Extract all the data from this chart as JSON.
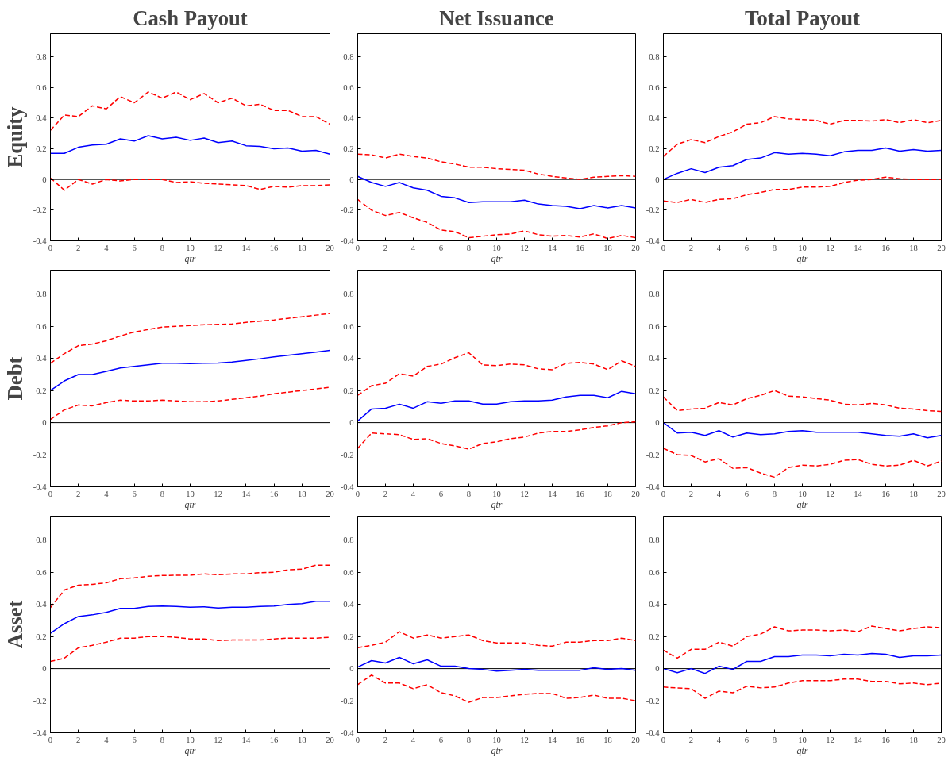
{
  "chart_data": [
    {
      "type": "line",
      "title": "Cash Payout",
      "ylabel": "Equity",
      "xlabel": "qtr",
      "x": [
        0,
        1,
        2,
        3,
        4,
        5,
        6,
        7,
        8,
        9,
        10,
        11,
        12,
        13,
        14,
        15,
        16,
        17,
        18,
        19,
        20
      ],
      "xlim": [
        0,
        20
      ],
      "xticks": [
        0,
        2,
        4,
        6,
        8,
        10,
        12,
        14,
        16,
        18,
        20
      ],
      "ylim": [
        -0.4,
        0.95
      ],
      "yticks": [
        -0.4,
        -0.2,
        0,
        0.2,
        0.4,
        0.6,
        0.8
      ],
      "ref_lines": [
        {
          "axis": "y",
          "value": 0,
          "color": "#000000"
        }
      ],
      "series": [
        {
          "color": "#0000ff",
          "line_style": "solid",
          "values": [
            0.17,
            0.17,
            0.21,
            0.225,
            0.23,
            0.265,
            0.25,
            0.285,
            0.265,
            0.275,
            0.255,
            0.27,
            0.24,
            0.25,
            0.22,
            0.215,
            0.2,
            0.205,
            0.185,
            0.19,
            0.165
          ]
        },
        {
          "color": "#ff0000",
          "line_style": "dashed",
          "values": [
            0.32,
            0.42,
            0.41,
            0.48,
            0.46,
            0.54,
            0.5,
            0.57,
            0.53,
            0.57,
            0.52,
            0.56,
            0.5,
            0.53,
            0.48,
            0.49,
            0.45,
            0.45,
            0.41,
            0.41,
            0.36
          ]
        },
        {
          "color": "#ff0000",
          "line_style": "dashed",
          "values": [
            0.01,
            -0.07,
            0.0,
            -0.03,
            0.0,
            -0.01,
            0.0,
            0.0,
            0.0,
            -0.02,
            -0.015,
            -0.025,
            -0.03,
            -0.035,
            -0.04,
            -0.065,
            -0.045,
            -0.05,
            -0.04,
            -0.04,
            -0.035
          ]
        }
      ]
    },
    {
      "type": "line",
      "title": "Net Issuance",
      "xlabel": "qtr",
      "x": [
        0,
        1,
        2,
        3,
        4,
        5,
        6,
        7,
        8,
        9,
        10,
        11,
        12,
        13,
        14,
        15,
        16,
        17,
        18,
        19,
        20
      ],
      "xlim": [
        0,
        20
      ],
      "xticks": [
        0,
        2,
        4,
        6,
        8,
        10,
        12,
        14,
        16,
        18,
        20
      ],
      "ylim": [
        -0.4,
        0.95
      ],
      "yticks": [
        -0.4,
        -0.2,
        0,
        0.2,
        0.4,
        0.6,
        0.8
      ],
      "ref_lines": [
        {
          "axis": "y",
          "value": 0,
          "color": "#000000"
        }
      ],
      "series": [
        {
          "color": "#0000ff",
          "line_style": "solid",
          "values": [
            0.02,
            -0.02,
            -0.045,
            -0.02,
            -0.055,
            -0.07,
            -0.11,
            -0.12,
            -0.15,
            -0.145,
            -0.145,
            -0.145,
            -0.135,
            -0.16,
            -0.17,
            -0.175,
            -0.19,
            -0.17,
            -0.185,
            -0.17,
            -0.185
          ]
        },
        {
          "color": "#ff0000",
          "line_style": "dashed",
          "values": [
            0.165,
            0.16,
            0.14,
            0.165,
            0.15,
            0.14,
            0.115,
            0.1,
            0.08,
            0.08,
            0.07,
            0.065,
            0.06,
            0.035,
            0.02,
            0.01,
            0.0,
            0.015,
            0.02,
            0.025,
            0.02
          ]
        },
        {
          "color": "#ff0000",
          "line_style": "dashed",
          "values": [
            -0.13,
            -0.2,
            -0.235,
            -0.215,
            -0.25,
            -0.28,
            -0.33,
            -0.34,
            -0.38,
            -0.37,
            -0.36,
            -0.355,
            -0.335,
            -0.36,
            -0.37,
            -0.365,
            -0.375,
            -0.355,
            -0.385,
            -0.365,
            -0.38
          ]
        }
      ]
    },
    {
      "type": "line",
      "title": "Total Payout",
      "xlabel": "qtr",
      "x": [
        0,
        1,
        2,
        3,
        4,
        5,
        6,
        7,
        8,
        9,
        10,
        11,
        12,
        13,
        14,
        15,
        16,
        17,
        18,
        19,
        20
      ],
      "xlim": [
        0,
        20
      ],
      "xticks": [
        0,
        2,
        4,
        6,
        8,
        10,
        12,
        14,
        16,
        18,
        20
      ],
      "ylim": [
        -0.4,
        0.95
      ],
      "yticks": [
        -0.4,
        -0.2,
        0,
        0.2,
        0.4,
        0.6,
        0.8
      ],
      "ref_lines": [
        {
          "axis": "y",
          "value": 0,
          "color": "#000000"
        }
      ],
      "series": [
        {
          "color": "#0000ff",
          "line_style": "solid",
          "values": [
            0.0,
            0.04,
            0.07,
            0.045,
            0.08,
            0.09,
            0.13,
            0.14,
            0.175,
            0.165,
            0.17,
            0.165,
            0.155,
            0.18,
            0.19,
            0.19,
            0.205,
            0.185,
            0.195,
            0.185,
            0.19
          ]
        },
        {
          "color": "#ff0000",
          "line_style": "dashed",
          "values": [
            0.15,
            0.23,
            0.26,
            0.24,
            0.28,
            0.31,
            0.36,
            0.37,
            0.41,
            0.395,
            0.39,
            0.385,
            0.36,
            0.385,
            0.385,
            0.38,
            0.39,
            0.37,
            0.39,
            0.37,
            0.385
          ]
        },
        {
          "color": "#ff0000",
          "line_style": "dashed",
          "values": [
            -0.14,
            -0.15,
            -0.13,
            -0.15,
            -0.13,
            -0.125,
            -0.1,
            -0.085,
            -0.065,
            -0.065,
            -0.05,
            -0.05,
            -0.045,
            -0.02,
            -0.005,
            0.0,
            0.015,
            0.005,
            0.0,
            0.0,
            0.0
          ]
        }
      ]
    },
    {
      "type": "line",
      "ylabel": "Debt",
      "xlabel": "qtr",
      "x": [
        0,
        1,
        2,
        3,
        4,
        5,
        6,
        7,
        8,
        9,
        10,
        11,
        12,
        13,
        14,
        15,
        16,
        17,
        18,
        19,
        20
      ],
      "xlim": [
        0,
        20
      ],
      "xticks": [
        0,
        2,
        4,
        6,
        8,
        10,
        12,
        14,
        16,
        18,
        20
      ],
      "ylim": [
        -0.4,
        0.95
      ],
      "yticks": [
        -0.4,
        -0.2,
        0,
        0.2,
        0.4,
        0.6,
        0.8
      ],
      "ref_lines": [
        {
          "axis": "y",
          "value": 0,
          "color": "#000000"
        }
      ],
      "series": [
        {
          "color": "#0000ff",
          "line_style": "solid",
          "values": [
            0.2,
            0.26,
            0.3,
            0.3,
            0.32,
            0.34,
            0.35,
            0.36,
            0.37,
            0.37,
            0.368,
            0.37,
            0.372,
            0.378,
            0.388,
            0.398,
            0.41,
            0.42,
            0.43,
            0.44,
            0.45
          ]
        },
        {
          "color": "#ff0000",
          "line_style": "dashed",
          "values": [
            0.37,
            0.43,
            0.48,
            0.49,
            0.51,
            0.54,
            0.565,
            0.58,
            0.595,
            0.6,
            0.605,
            0.61,
            0.612,
            0.615,
            0.625,
            0.632,
            0.64,
            0.65,
            0.66,
            0.67,
            0.68
          ]
        },
        {
          "color": "#ff0000",
          "line_style": "dashed",
          "values": [
            0.02,
            0.08,
            0.11,
            0.105,
            0.125,
            0.14,
            0.135,
            0.135,
            0.14,
            0.135,
            0.13,
            0.13,
            0.135,
            0.145,
            0.155,
            0.165,
            0.18,
            0.19,
            0.2,
            0.21,
            0.22
          ]
        }
      ]
    },
    {
      "type": "line",
      "xlabel": "qtr",
      "x": [
        0,
        1,
        2,
        3,
        4,
        5,
        6,
        7,
        8,
        9,
        10,
        11,
        12,
        13,
        14,
        15,
        16,
        17,
        18,
        19,
        20
      ],
      "xlim": [
        0,
        20
      ],
      "xticks": [
        0,
        2,
        4,
        6,
        8,
        10,
        12,
        14,
        16,
        18,
        20
      ],
      "ylim": [
        -0.4,
        0.95
      ],
      "yticks": [
        -0.4,
        -0.2,
        0,
        0.2,
        0.4,
        0.6,
        0.8
      ],
      "ref_lines": [
        {
          "axis": "y",
          "value": 0,
          "color": "#000000"
        }
      ],
      "series": [
        {
          "color": "#0000ff",
          "line_style": "solid",
          "values": [
            0.01,
            0.085,
            0.09,
            0.115,
            0.09,
            0.13,
            0.12,
            0.135,
            0.135,
            0.115,
            0.115,
            0.13,
            0.135,
            0.135,
            0.14,
            0.16,
            0.17,
            0.17,
            0.155,
            0.195,
            0.18
          ]
        },
        {
          "color": "#ff0000",
          "line_style": "dashed",
          "values": [
            0.17,
            0.23,
            0.245,
            0.305,
            0.29,
            0.35,
            0.365,
            0.405,
            0.435,
            0.36,
            0.355,
            0.365,
            0.36,
            0.335,
            0.33,
            0.37,
            0.375,
            0.365,
            0.33,
            0.385,
            0.35
          ]
        },
        {
          "color": "#ff0000",
          "line_style": "dashed",
          "values": [
            -0.16,
            -0.065,
            -0.07,
            -0.075,
            -0.105,
            -0.1,
            -0.13,
            -0.145,
            -0.165,
            -0.13,
            -0.12,
            -0.1,
            -0.09,
            -0.065,
            -0.055,
            -0.055,
            -0.045,
            -0.03,
            -0.02,
            0.0,
            0.005
          ]
        }
      ]
    },
    {
      "type": "line",
      "xlabel": "qtr",
      "x": [
        0,
        1,
        2,
        3,
        4,
        5,
        6,
        7,
        8,
        9,
        10,
        11,
        12,
        13,
        14,
        15,
        16,
        17,
        18,
        19,
        20
      ],
      "xlim": [
        0,
        20
      ],
      "xticks": [
        0,
        2,
        4,
        6,
        8,
        10,
        12,
        14,
        16,
        18,
        20
      ],
      "ylim": [
        -0.4,
        0.95
      ],
      "yticks": [
        -0.4,
        -0.2,
        0,
        0.2,
        0.4,
        0.6,
        0.8
      ],
      "ref_lines": [
        {
          "axis": "y",
          "value": 0,
          "color": "#000000"
        }
      ],
      "series": [
        {
          "color": "#0000ff",
          "line_style": "solid",
          "values": [
            0.0,
            -0.065,
            -0.06,
            -0.08,
            -0.05,
            -0.09,
            -0.065,
            -0.075,
            -0.07,
            -0.055,
            -0.05,
            -0.06,
            -0.06,
            -0.06,
            -0.06,
            -0.07,
            -0.08,
            -0.085,
            -0.07,
            -0.095,
            -0.08
          ]
        },
        {
          "color": "#ff0000",
          "line_style": "dashed",
          "values": [
            0.16,
            0.075,
            0.085,
            0.09,
            0.125,
            0.11,
            0.15,
            0.17,
            0.2,
            0.165,
            0.16,
            0.15,
            0.14,
            0.115,
            0.11,
            0.12,
            0.11,
            0.09,
            0.085,
            0.075,
            0.07
          ]
        },
        {
          "color": "#ff0000",
          "line_style": "dashed",
          "values": [
            -0.16,
            -0.2,
            -0.205,
            -0.245,
            -0.225,
            -0.285,
            -0.28,
            -0.315,
            -0.34,
            -0.28,
            -0.265,
            -0.27,
            -0.26,
            -0.235,
            -0.23,
            -0.26,
            -0.27,
            -0.265,
            -0.235,
            -0.27,
            -0.24
          ]
        }
      ]
    },
    {
      "type": "line",
      "ylabel": "Asset",
      "xlabel": "qtr",
      "x": [
        0,
        1,
        2,
        3,
        4,
        5,
        6,
        7,
        8,
        9,
        10,
        11,
        12,
        13,
        14,
        15,
        16,
        17,
        18,
        19,
        20
      ],
      "xlim": [
        0,
        20
      ],
      "xticks": [
        0,
        2,
        4,
        6,
        8,
        10,
        12,
        14,
        16,
        18,
        20
      ],
      "ylim": [
        -0.4,
        0.95
      ],
      "yticks": [
        -0.4,
        -0.2,
        0,
        0.2,
        0.4,
        0.6,
        0.8
      ],
      "ref_lines": [
        {
          "axis": "y",
          "value": 0,
          "color": "#000000"
        }
      ],
      "series": [
        {
          "color": "#0000ff",
          "line_style": "solid",
          "values": [
            0.22,
            0.28,
            0.325,
            0.335,
            0.35,
            0.375,
            0.375,
            0.387,
            0.39,
            0.388,
            0.382,
            0.385,
            0.378,
            0.383,
            0.383,
            0.387,
            0.39,
            0.4,
            0.405,
            0.42,
            0.42
          ]
        },
        {
          "color": "#ff0000",
          "line_style": "dashed",
          "values": [
            0.38,
            0.49,
            0.52,
            0.525,
            0.535,
            0.56,
            0.565,
            0.575,
            0.58,
            0.582,
            0.582,
            0.59,
            0.585,
            0.59,
            0.59,
            0.598,
            0.6,
            0.615,
            0.62,
            0.645,
            0.645
          ]
        },
        {
          "color": "#ff0000",
          "line_style": "dashed",
          "values": [
            0.045,
            0.065,
            0.13,
            0.145,
            0.165,
            0.19,
            0.19,
            0.2,
            0.2,
            0.195,
            0.185,
            0.185,
            0.175,
            0.178,
            0.178,
            0.178,
            0.185,
            0.19,
            0.19,
            0.19,
            0.195
          ]
        }
      ]
    },
    {
      "type": "line",
      "xlabel": "qtr",
      "x": [
        0,
        1,
        2,
        3,
        4,
        5,
        6,
        7,
        8,
        9,
        10,
        11,
        12,
        13,
        14,
        15,
        16,
        17,
        18,
        19,
        20
      ],
      "xlim": [
        0,
        20
      ],
      "xticks": [
        0,
        2,
        4,
        6,
        8,
        10,
        12,
        14,
        16,
        18,
        20
      ],
      "ylim": [
        -0.4,
        0.95
      ],
      "yticks": [
        -0.4,
        -0.2,
        0,
        0.2,
        0.4,
        0.6,
        0.8
      ],
      "ref_lines": [
        {
          "axis": "y",
          "value": 0,
          "color": "#000000"
        }
      ],
      "series": [
        {
          "color": "#0000ff",
          "line_style": "solid",
          "values": [
            0.01,
            0.05,
            0.035,
            0.07,
            0.03,
            0.055,
            0.015,
            0.015,
            0.0,
            -0.005,
            -0.015,
            -0.01,
            -0.005,
            -0.01,
            -0.01,
            -0.01,
            -0.01,
            0.005,
            -0.005,
            0.0,
            -0.01
          ]
        },
        {
          "color": "#ff0000",
          "line_style": "dashed",
          "values": [
            0.13,
            0.145,
            0.165,
            0.23,
            0.19,
            0.21,
            0.19,
            0.2,
            0.21,
            0.175,
            0.16,
            0.16,
            0.16,
            0.145,
            0.14,
            0.165,
            0.165,
            0.175,
            0.175,
            0.19,
            0.175
          ]
        },
        {
          "color": "#ff0000",
          "line_style": "dashed",
          "values": [
            -0.1,
            -0.04,
            -0.09,
            -0.09,
            -0.125,
            -0.1,
            -0.15,
            -0.17,
            -0.21,
            -0.18,
            -0.18,
            -0.17,
            -0.16,
            -0.155,
            -0.155,
            -0.185,
            -0.18,
            -0.165,
            -0.185,
            -0.185,
            -0.2
          ]
        }
      ]
    },
    {
      "type": "line",
      "xlabel": "qtr",
      "x": [
        0,
        1,
        2,
        3,
        4,
        5,
        6,
        7,
        8,
        9,
        10,
        11,
        12,
        13,
        14,
        15,
        16,
        17,
        18,
        19,
        20
      ],
      "xlim": [
        0,
        20
      ],
      "xticks": [
        0,
        2,
        4,
        6,
        8,
        10,
        12,
        14,
        16,
        18,
        20
      ],
      "ylim": [
        -0.4,
        0.95
      ],
      "yticks": [
        -0.4,
        -0.2,
        0,
        0.2,
        0.4,
        0.6,
        0.8
      ],
      "ref_lines": [
        {
          "axis": "y",
          "value": 0,
          "color": "#000000"
        }
      ],
      "series": [
        {
          "color": "#0000ff",
          "line_style": "solid",
          "values": [
            0.0,
            -0.025,
            0.0,
            -0.03,
            0.015,
            -0.005,
            0.045,
            0.045,
            0.075,
            0.075,
            0.085,
            0.085,
            0.08,
            0.09,
            0.085,
            0.095,
            0.09,
            0.07,
            0.08,
            0.08,
            0.085
          ]
        },
        {
          "color": "#ff0000",
          "line_style": "dashed",
          "values": [
            0.115,
            0.065,
            0.12,
            0.12,
            0.165,
            0.14,
            0.2,
            0.215,
            0.26,
            0.235,
            0.24,
            0.24,
            0.235,
            0.24,
            0.23,
            0.265,
            0.25,
            0.235,
            0.25,
            0.26,
            0.255
          ]
        },
        {
          "color": "#ff0000",
          "line_style": "dashed",
          "values": [
            -0.115,
            -0.12,
            -0.125,
            -0.185,
            -0.14,
            -0.15,
            -0.11,
            -0.12,
            -0.115,
            -0.09,
            -0.075,
            -0.075,
            -0.075,
            -0.065,
            -0.065,
            -0.08,
            -0.08,
            -0.095,
            -0.09,
            -0.1,
            -0.09
          ]
        }
      ]
    }
  ]
}
